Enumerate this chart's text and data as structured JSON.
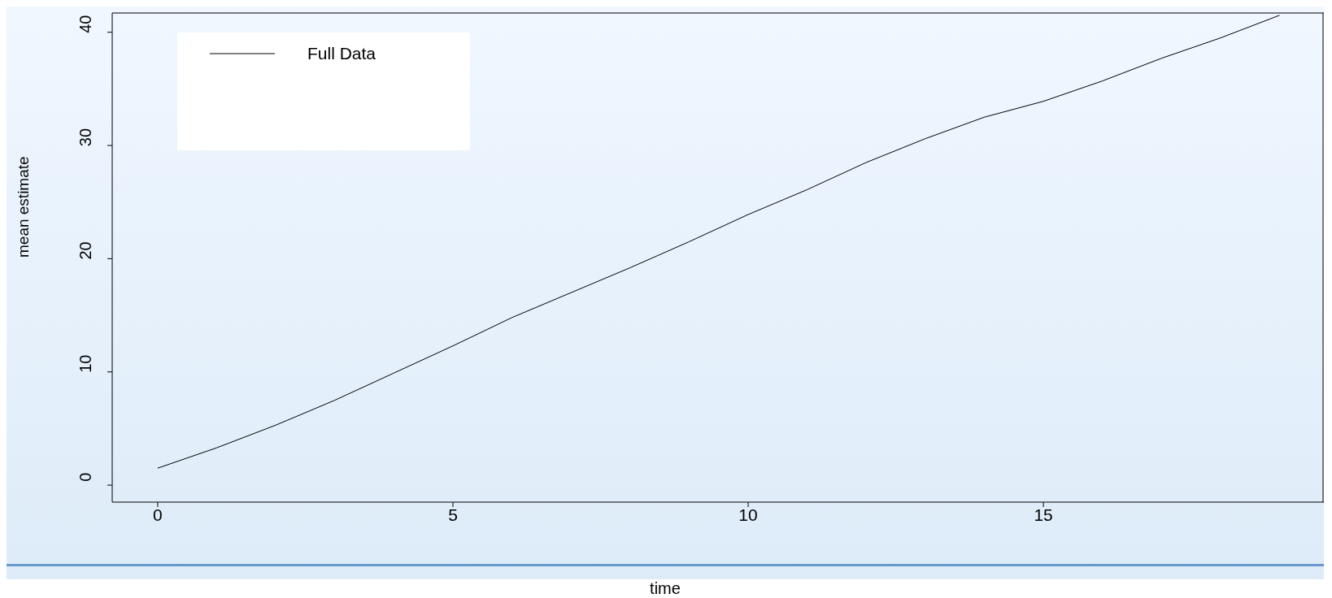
{
  "chart_data": {
    "type": "line",
    "xlabel": "time",
    "ylabel": "mean estimate",
    "x": [
      0,
      1,
      2,
      3,
      4,
      5,
      6,
      7,
      8,
      9,
      10,
      11,
      12,
      13,
      14,
      15,
      16,
      17,
      18,
      19
    ],
    "series": [
      {
        "name": "Full Data",
        "color": "#000000",
        "values": [
          1.5,
          3.3,
          5.3,
          7.5,
          9.9,
          12.3,
          14.8,
          17.0,
          19.2,
          21.5,
          23.9,
          26.1,
          28.5,
          30.6,
          32.5,
          33.9,
          35.7,
          37.7,
          39.5,
          41.5
        ]
      }
    ],
    "xlim": [
      -0.77,
      19.75
    ],
    "ylim": [
      -1.5,
      41.7
    ],
    "xticks": [
      0,
      5,
      10,
      15
    ],
    "yticks": [
      0,
      10,
      20,
      30,
      40
    ],
    "grid": false,
    "legend": "top left",
    "marker": "none",
    "line_style": "solid"
  }
}
